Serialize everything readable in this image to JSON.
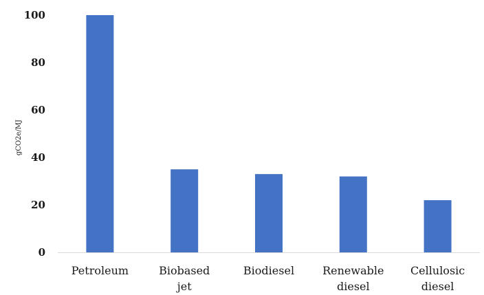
{
  "chart_data": {
    "type": "bar",
    "title": "",
    "xlabel": "",
    "ylabel": "gCO2e/MJ",
    "categories": [
      [
        "Petroleum"
      ],
      [
        "Biobased",
        "jet"
      ],
      [
        "Biodiesel"
      ],
      [
        "Renewable",
        "diesel"
      ],
      [
        "Cellulosic",
        "diesel"
      ]
    ],
    "values": [
      100,
      35,
      33,
      32,
      22
    ],
    "ylim": [
      0,
      100
    ],
    "yticks": [
      "0",
      "20",
      "40",
      "60",
      "80",
      "100"
    ],
    "grid": false,
    "legend": "none",
    "bar_color": "#4472c4",
    "axis_color": "#d9d9d9"
  }
}
